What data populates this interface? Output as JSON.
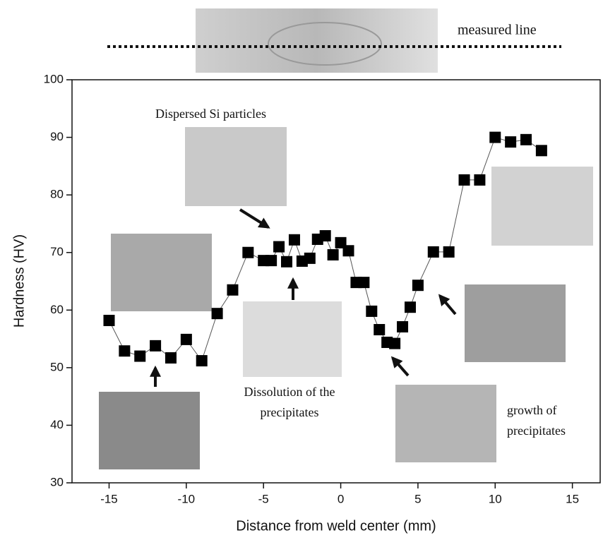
{
  "chart_data": {
    "type": "line",
    "x_label": "Distance from weld center (mm)",
    "y_label": "Hardness (HV)",
    "x": [
      -15,
      -14,
      -13,
      -12,
      -11,
      -10,
      -9,
      -8,
      -7,
      -6,
      -5,
      -4.5,
      -4,
      -3.5,
      -3,
      -2.5,
      -2,
      -1.5,
      -1,
      -0.5,
      0,
      0.5,
      1,
      1.5,
      2,
      2.5,
      3,
      3.5,
      4,
      4.5,
      5,
      6,
      7,
      8,
      9,
      10,
      11,
      12,
      13
    ],
    "series": [
      {
        "color": "#000000",
        "values": [
          58.2,
          52.9,
          52.0,
          53.8,
          51.7,
          54.9,
          51.2,
          59.4,
          63.5,
          70.0,
          68.6,
          68.6,
          71.0,
          68.4,
          72.2,
          68.5,
          69.0,
          72.3,
          72.9,
          69.6,
          71.7,
          70.3,
          64.8,
          64.8,
          59.8,
          56.6,
          54.4,
          54.2,
          57.1,
          60.5,
          64.3,
          70.1,
          70.1,
          82.6,
          82.6,
          90.0,
          89.2,
          89.6,
          87.7
        ]
      }
    ],
    "xlim": [
      -17.4,
      16.8
    ],
    "xticks": [
      -15,
      -10,
      -5,
      0,
      5,
      10,
      15
    ],
    "ylim": [
      30,
      100
    ],
    "yticks": [
      30,
      40,
      50,
      60,
      70,
      80,
      90,
      100
    ],
    "annotations": [
      [
        "measured line"
      ],
      [
        "Dispersed Si particles"
      ],
      [
        "Dissolution of the",
        "precipitates"
      ],
      [
        "growth of",
        "precipitates"
      ]
    ]
  }
}
